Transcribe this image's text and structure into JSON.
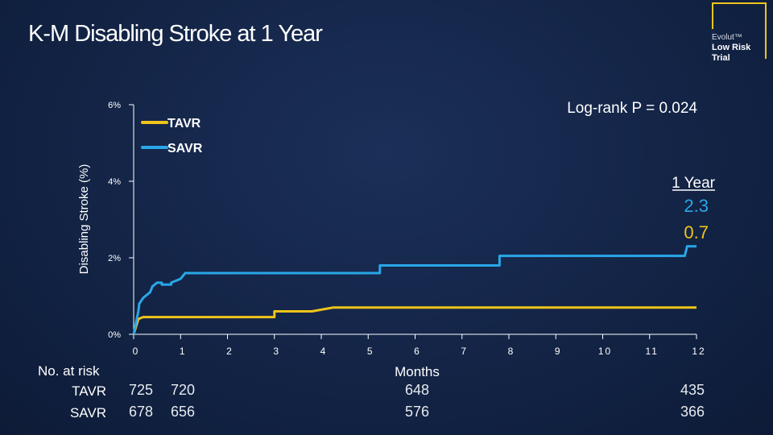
{
  "title": "K-M Disabling Stroke at 1 Year",
  "logo": {
    "line1": "Evolut™",
    "line2": "Low Risk",
    "line3": "Trial",
    "color": "#f0c419"
  },
  "chart_data": {
    "type": "line",
    "title": "K-M Disabling Stroke at 1 Year",
    "xlabel": "Months",
    "ylabel": "Disabling Stroke (%)",
    "xlim": [
      0,
      12
    ],
    "ylim": [
      0,
      6
    ],
    "x_ticks": [
      "0",
      "1",
      "2",
      "3",
      "4",
      "5",
      "6",
      "7",
      "8",
      "9",
      "10",
      "11",
      "12"
    ],
    "y_ticks": [
      "0%",
      "2%",
      "4%",
      "6%"
    ],
    "grid": false,
    "legend": "top-left",
    "annotation": "Log-rank P = 0.024",
    "series": [
      {
        "name": "TAVR",
        "color": "#f0c419",
        "x": [
          0,
          0.05,
          0.1,
          0.2,
          0.3,
          3.0,
          3.0,
          3.8,
          4.25,
          4.25,
          12.0
        ],
        "y": [
          0,
          0.2,
          0.4,
          0.45,
          0.45,
          0.45,
          0.6,
          0.6,
          0.7,
          0.7,
          0.7
        ]
      },
      {
        "name": "SAVR",
        "color": "#29a7e8",
        "x": [
          0,
          0.05,
          0.1,
          0.12,
          0.2,
          0.3,
          0.35,
          0.4,
          0.5,
          0.6,
          0.6,
          0.8,
          0.8,
          1.0,
          1.1,
          1.3,
          1.45,
          1.45,
          5.25,
          5.25,
          7.8,
          7.8,
          11.75,
          11.8,
          12.0
        ],
        "y": [
          0,
          0.3,
          0.6,
          0.8,
          0.95,
          1.05,
          1.1,
          1.25,
          1.35,
          1.35,
          1.3,
          1.3,
          1.35,
          1.45,
          1.6,
          1.6,
          1.6,
          1.6,
          1.6,
          1.8,
          1.8,
          2.05,
          2.05,
          2.3,
          2.3
        ]
      }
    ],
    "one_year": {
      "label": "1 Year",
      "savr": "2.3",
      "tavr": "0.7"
    },
    "at_risk": {
      "header": "No. at risk",
      "rows": [
        {
          "label": "TAVR",
          "values": [
            {
              "month": 0,
              "v": "725"
            },
            {
              "month": 1,
              "v": "720"
            },
            {
              "month": 6,
              "v": "648"
            },
            {
              "month": 12,
              "v": "435"
            }
          ]
        },
        {
          "label": "SAVR",
          "values": [
            {
              "month": 0,
              "v": "678"
            },
            {
              "month": 1,
              "v": "656"
            },
            {
              "month": 6,
              "v": "576"
            },
            {
              "month": 12,
              "v": "366"
            }
          ]
        }
      ]
    }
  }
}
